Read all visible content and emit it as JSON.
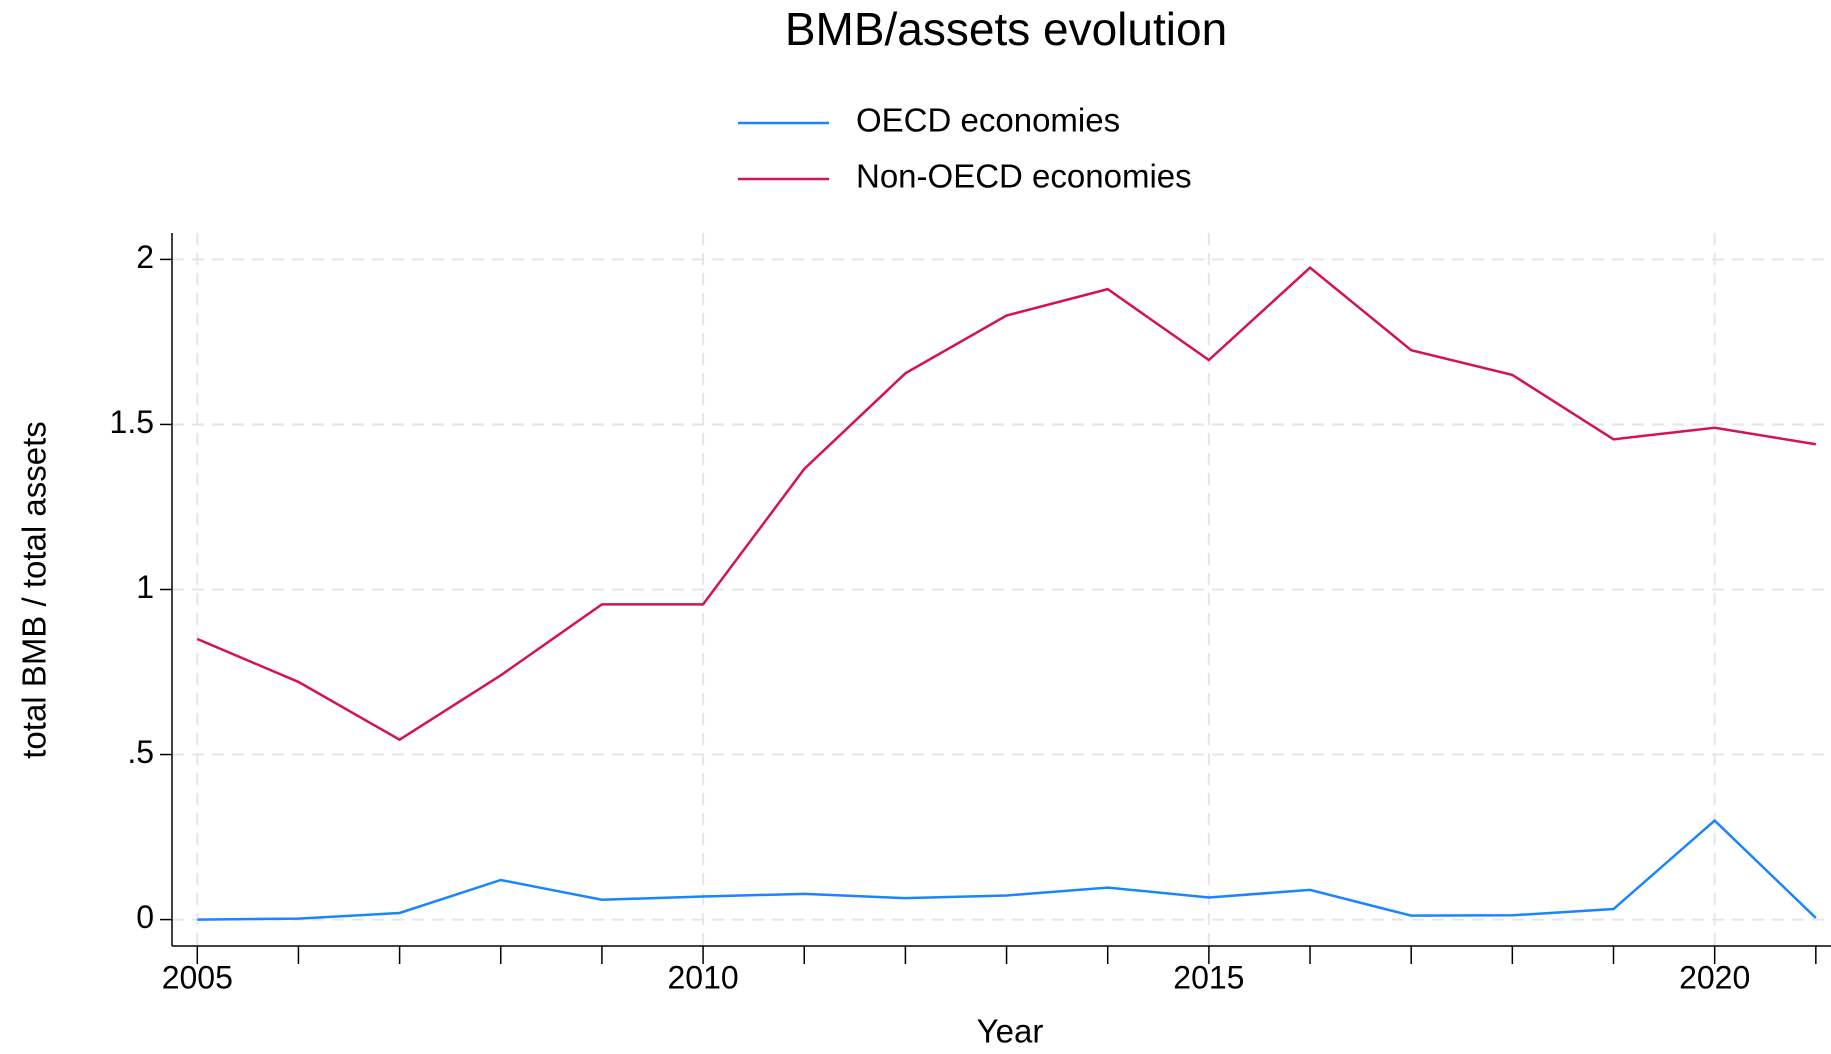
{
  "chart_data": {
    "type": "line",
    "title": "BMB/assets evolution",
    "x_label": "Year",
    "y_label": "total BMB / total assets",
    "x": [
      2005,
      2006,
      2007,
      2008,
      2009,
      2010,
      2011,
      2012,
      2013,
      2014,
      2015,
      2016,
      2017,
      2018,
      2019,
      2020,
      2021
    ],
    "series": [
      {
        "name": "OECD economies",
        "color": "#1a85ff",
        "values": [
          0,
          0.003,
          0.02,
          0.12,
          0.06,
          0.07,
          0.078,
          0.065,
          0.073,
          0.097,
          0.067,
          0.09,
          0.012,
          0.013,
          0.032,
          0.3,
          0.005
        ]
      },
      {
        "name": "Non-OECD economies",
        "color": "#d41159",
        "values": [
          0.85,
          0.72,
          0.545,
          0.74,
          0.955,
          0.955,
          1.365,
          1.655,
          1.83,
          1.91,
          1.695,
          1.975,
          1.725,
          1.65,
          1.455,
          1.49,
          1.44
        ]
      }
    ],
    "xlim": [
      2004.75,
      2021.15
    ],
    "xticks": [
      2005,
      2010,
      2015,
      2020
    ],
    "ylim": [
      -0.08,
      2.08
    ],
    "yticks": [
      0,
      {
        "value": 0.5,
        "label": ".5"
      },
      1,
      1.5,
      2
    ],
    "grid": true,
    "legend": "top"
  }
}
